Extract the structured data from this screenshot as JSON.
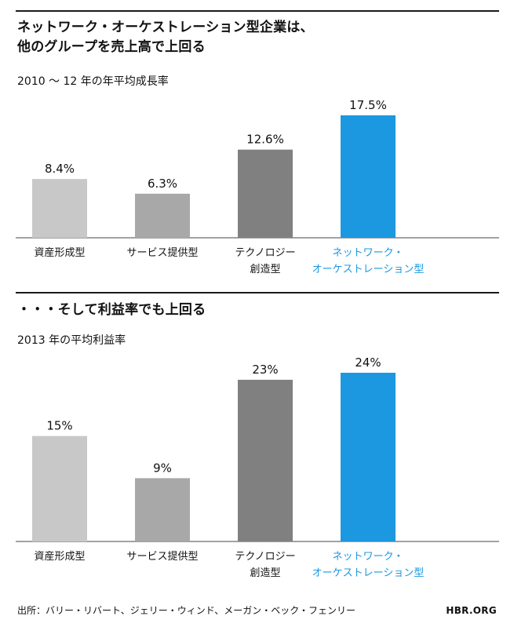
{
  "title_line1": "ネットワーク・オーケストレーション型企業は、",
  "title_line2": "他のグループを売上高で上回る",
  "section2_title": "・・・そして利益率でも上回る",
  "source": "出所：バリー・リバート、ジェリー・ウィンド、メーガン・ベック・フェンリー",
  "brand": "HBR.ORG",
  "colors": {
    "cat1": "#c8c8c8",
    "cat2": "#a8a8a8",
    "cat3": "#808080",
    "highlight": "#1b98e0",
    "text": "#111111"
  },
  "chart_data": [
    {
      "type": "bar",
      "subtitle": "2010 ～ 12 年の年平均成長率",
      "categories": [
        [
          "資産形成型"
        ],
        [
          "サービス提供型"
        ],
        [
          "テクノロジー",
          "創造型"
        ],
        [
          "ネットワーク・",
          "オーケストレーション型"
        ]
      ],
      "values": [
        8.4,
        6.3,
        12.6,
        17.5
      ],
      "value_labels": [
        "8.4%",
        "6.3%",
        "12.6%",
        "17.5%"
      ],
      "highlight_index": 3,
      "ylim": [
        0,
        17.5
      ]
    },
    {
      "type": "bar",
      "subtitle": "2013 年の平均利益率",
      "categories": [
        [
          "資産形成型"
        ],
        [
          "サービス提供型"
        ],
        [
          "テクノロジー",
          "創造型"
        ],
        [
          "ネットワーク・",
          "オーケストレーション型"
        ]
      ],
      "values": [
        15,
        9,
        23,
        24
      ],
      "value_labels": [
        "15%",
        "9%",
        "23%",
        "24%"
      ],
      "highlight_index": 3,
      "ylim": [
        0,
        24
      ]
    }
  ]
}
